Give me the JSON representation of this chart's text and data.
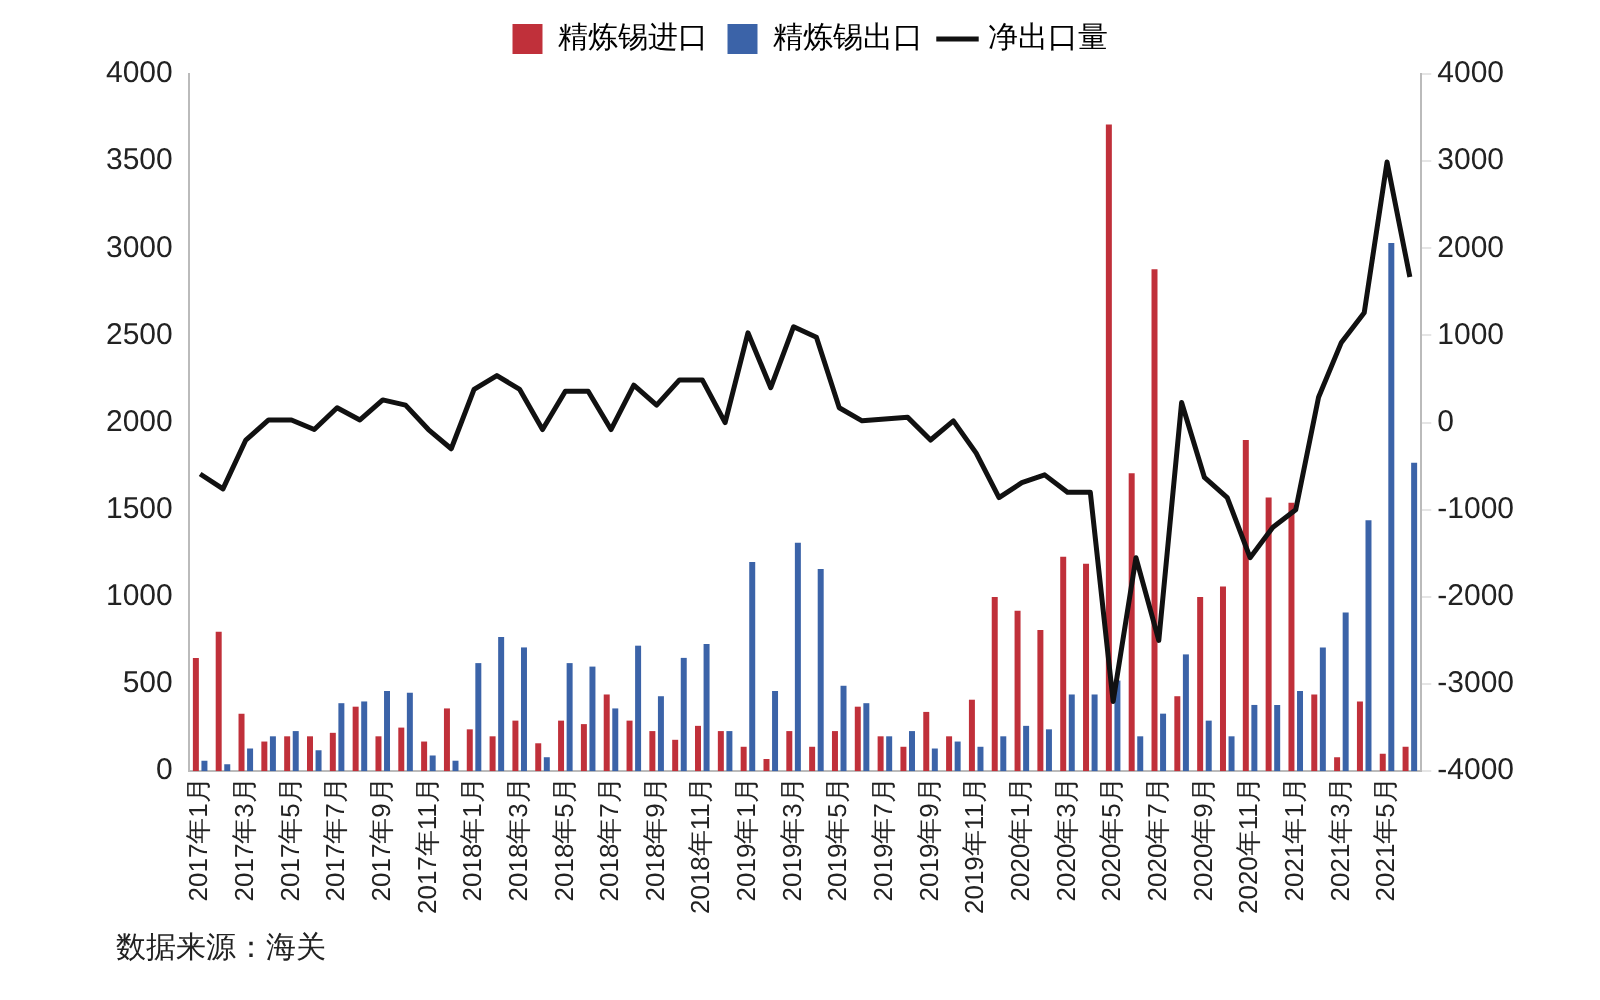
{
  "chart_data": {
    "type": "bar",
    "legend": "top",
    "grid": false,
    "marker": "none",
    "categories": [
      "2017年1月",
      null,
      "2017年3月",
      null,
      "2017年5月",
      null,
      "2017年7月",
      null,
      "2017年9月",
      null,
      "2017年11月",
      null,
      "2018年1月",
      null,
      "2018年3月",
      null,
      "2018年5月",
      null,
      "2018年7月",
      null,
      "2018年9月",
      null,
      "2018年11月",
      null,
      "2019年1月",
      null,
      "2019年3月",
      null,
      "2019年5月",
      null,
      "2019年7月",
      null,
      "2019年9月",
      null,
      "2019年11月",
      null,
      "2020年1月",
      null,
      "2020年3月",
      null,
      "2020年5月",
      null,
      "2020年7月",
      null,
      "2020年9月",
      null,
      "2020年11月",
      null,
      "2021年1月",
      null,
      "2021年3月",
      null,
      "2021年5月",
      null
    ],
    "series": [
      {
        "name": "精炼锡进口",
        "color": "#c0303a",
        "values": [
          650,
          800,
          330,
          170,
          200,
          200,
          220,
          370,
          200,
          250,
          170,
          360,
          240,
          200,
          290,
          160,
          290,
          270,
          440,
          290,
          230,
          180,
          260,
          230,
          140,
          70,
          230,
          140,
          230,
          370,
          200,
          140,
          340,
          200,
          410,
          1000,
          920,
          810,
          1230,
          1190,
          3710,
          1710,
          2880,
          430,
          1000,
          1060,
          1900,
          1570,
          1540,
          440,
          80,
          400,
          100,
          140
        ]
      },
      {
        "name": "精炼锡出口",
        "color": "#3b63a8",
        "values": [
          60,
          40,
          130,
          200,
          230,
          120,
          390,
          400,
          460,
          450,
          90,
          60,
          620,
          770,
          710,
          80,
          620,
          600,
          360,
          720,
          430,
          650,
          730,
          230,
          1200,
          460,
          1310,
          1160,
          490,
          390,
          200,
          230,
          130,
          170,
          140,
          200,
          260,
          240,
          440,
          440,
          520,
          200,
          330,
          670,
          290,
          200,
          380,
          380,
          460,
          710,
          910,
          1440,
          3030,
          1770
        ]
      },
      {
        "name": "净出口量",
        "type": "line",
        "axis": "y2",
        "color": "#111111",
        "values": [
          -590,
          -760,
          -200,
          30,
          30,
          -80,
          170,
          30,
          260,
          200,
          -80,
          -300,
          380,
          540,
          380,
          -80,
          360,
          360,
          -80,
          430,
          200,
          490,
          490,
          0,
          1030,
          400,
          1100,
          980,
          170,
          20,
          40,
          60,
          -200,
          20,
          -350,
          -860,
          -690,
          -600,
          -800,
          -800,
          -3200,
          -1550,
          -2500,
          230,
          -630,
          -860,
          -1550,
          -1200,
          -1000,
          290,
          920,
          1260,
          2990,
          1670
        ]
      }
    ],
    "ylim": [
      0,
      4000
    ],
    "yticks": [
      0,
      500,
      1000,
      1500,
      2000,
      2500,
      3000,
      3500,
      4000
    ],
    "y2lim": [
      -4000,
      4000
    ],
    "y2ticks": [
      -4000,
      -3000,
      -2000,
      -1000,
      0,
      1000,
      2000,
      3000,
      4000
    ],
    "annotations": [
      "数据来源：海关"
    ]
  }
}
